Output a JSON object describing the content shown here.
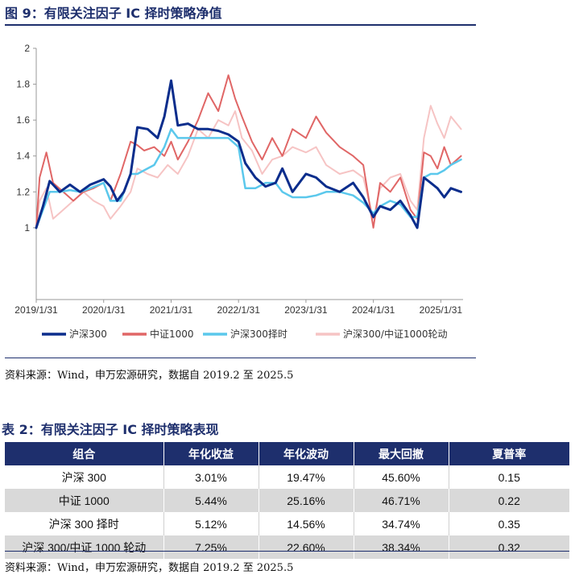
{
  "figure": {
    "title": "图 9：有限关注因子 IC 择时策略净值",
    "source": "资料来源：Wind，申万宏源研究，数据自 2019.2 至 2025.5"
  },
  "chart_data": {
    "type": "line",
    "title": "",
    "xlabel": "",
    "ylabel": "",
    "x_range": [
      "2019/1/31",
      "2025/5/30"
    ],
    "ylim": [
      0.6,
      2.0
    ],
    "y_ticks": [
      {
        "value": 1.0,
        "label": "1"
      },
      {
        "value": 1.2,
        "label": "1.2"
      },
      {
        "value": 1.4,
        "label": "1.4"
      },
      {
        "value": 1.6,
        "label": "1.6"
      },
      {
        "value": 1.8,
        "label": "1.8"
      },
      {
        "value": 2.0,
        "label": "2"
      }
    ],
    "x_ticks": [
      {
        "t": 0.0,
        "label": "2019/1/31"
      },
      {
        "t": 1.0,
        "label": "2020/1/31"
      },
      {
        "t": 2.0,
        "label": "2021/1/31"
      },
      {
        "t": 3.0,
        "label": "2022/1/31"
      },
      {
        "t": 4.0,
        "label": "2023/1/31"
      },
      {
        "t": 5.0,
        "label": "2024/1/31"
      },
      {
        "t": 6.0,
        "label": "2025/1/31"
      }
    ],
    "series": [
      {
        "name": "沪深300",
        "color": "#0b2d8c",
        "width": 3,
        "points": [
          [
            0,
            1.0
          ],
          [
            0.1,
            1.12
          ],
          [
            0.2,
            1.26
          ],
          [
            0.35,
            1.2
          ],
          [
            0.5,
            1.24
          ],
          [
            0.65,
            1.2
          ],
          [
            0.8,
            1.24
          ],
          [
            1.0,
            1.27
          ],
          [
            1.1,
            1.23
          ],
          [
            1.2,
            1.15
          ],
          [
            1.3,
            1.2
          ],
          [
            1.4,
            1.3
          ],
          [
            1.5,
            1.56
          ],
          [
            1.65,
            1.55
          ],
          [
            1.8,
            1.5
          ],
          [
            1.9,
            1.62
          ],
          [
            2.0,
            1.82
          ],
          [
            2.1,
            1.57
          ],
          [
            2.25,
            1.58
          ],
          [
            2.4,
            1.55
          ],
          [
            2.55,
            1.55
          ],
          [
            2.7,
            1.54
          ],
          [
            2.85,
            1.52
          ],
          [
            3.0,
            1.48
          ],
          [
            3.1,
            1.36
          ],
          [
            3.25,
            1.28
          ],
          [
            3.4,
            1.23
          ],
          [
            3.55,
            1.25
          ],
          [
            3.65,
            1.33
          ],
          [
            3.8,
            1.2
          ],
          [
            4.0,
            1.3
          ],
          [
            4.15,
            1.28
          ],
          [
            4.3,
            1.23
          ],
          [
            4.5,
            1.2
          ],
          [
            4.7,
            1.25
          ],
          [
            4.85,
            1.17
          ],
          [
            5.0,
            1.06
          ],
          [
            5.1,
            1.12
          ],
          [
            5.25,
            1.1
          ],
          [
            5.4,
            1.15
          ],
          [
            5.55,
            1.07
          ],
          [
            5.65,
            1.0
          ],
          [
            5.75,
            1.28
          ],
          [
            5.85,
            1.25
          ],
          [
            5.95,
            1.22
          ],
          [
            6.05,
            1.17
          ],
          [
            6.15,
            1.22
          ],
          [
            6.3,
            1.2
          ]
        ]
      },
      {
        "name": "中证1000",
        "color": "#e06666",
        "width": 2,
        "points": [
          [
            0,
            1.0
          ],
          [
            0.05,
            1.28
          ],
          [
            0.15,
            1.42
          ],
          [
            0.25,
            1.25
          ],
          [
            0.4,
            1.2
          ],
          [
            0.55,
            1.15
          ],
          [
            0.7,
            1.2
          ],
          [
            0.85,
            1.22
          ],
          [
            1.0,
            1.25
          ],
          [
            1.1,
            1.15
          ],
          [
            1.25,
            1.3
          ],
          [
            1.4,
            1.48
          ],
          [
            1.5,
            1.46
          ],
          [
            1.6,
            1.43
          ],
          [
            1.75,
            1.45
          ],
          [
            1.9,
            1.4
          ],
          [
            2.0,
            1.48
          ],
          [
            2.1,
            1.38
          ],
          [
            2.25,
            1.48
          ],
          [
            2.4,
            1.6
          ],
          [
            2.55,
            1.75
          ],
          [
            2.7,
            1.65
          ],
          [
            2.85,
            1.85
          ],
          [
            2.95,
            1.72
          ],
          [
            3.05,
            1.62
          ],
          [
            3.2,
            1.48
          ],
          [
            3.35,
            1.38
          ],
          [
            3.5,
            1.5
          ],
          [
            3.65,
            1.4
          ],
          [
            3.8,
            1.55
          ],
          [
            4.0,
            1.5
          ],
          [
            4.15,
            1.62
          ],
          [
            4.3,
            1.53
          ],
          [
            4.5,
            1.45
          ],
          [
            4.7,
            1.4
          ],
          [
            4.85,
            1.35
          ],
          [
            5.0,
            1.0
          ],
          [
            5.1,
            1.25
          ],
          [
            5.25,
            1.2
          ],
          [
            5.4,
            1.28
          ],
          [
            5.55,
            1.1
          ],
          [
            5.65,
            1.05
          ],
          [
            5.75,
            1.42
          ],
          [
            5.85,
            1.4
          ],
          [
            5.95,
            1.33
          ],
          [
            6.05,
            1.45
          ],
          [
            6.15,
            1.35
          ],
          [
            6.3,
            1.4
          ]
        ]
      },
      {
        "name": "沪深300择时",
        "color": "#5bc8ec",
        "width": 2.5,
        "points": [
          [
            0,
            1.0
          ],
          [
            0.1,
            1.1
          ],
          [
            0.2,
            1.2
          ],
          [
            0.35,
            1.2
          ],
          [
            0.5,
            1.21
          ],
          [
            0.65,
            1.2
          ],
          [
            0.8,
            1.22
          ],
          [
            1.0,
            1.25
          ],
          [
            1.1,
            1.15
          ],
          [
            1.25,
            1.15
          ],
          [
            1.4,
            1.3
          ],
          [
            1.5,
            1.3
          ],
          [
            1.6,
            1.32
          ],
          [
            1.75,
            1.35
          ],
          [
            1.9,
            1.45
          ],
          [
            2.0,
            1.55
          ],
          [
            2.1,
            1.5
          ],
          [
            2.25,
            1.5
          ],
          [
            2.4,
            1.5
          ],
          [
            2.55,
            1.5
          ],
          [
            2.7,
            1.5
          ],
          [
            2.85,
            1.5
          ],
          [
            3.0,
            1.45
          ],
          [
            3.1,
            1.22
          ],
          [
            3.25,
            1.22
          ],
          [
            3.4,
            1.25
          ],
          [
            3.55,
            1.25
          ],
          [
            3.65,
            1.2
          ],
          [
            3.8,
            1.17
          ],
          [
            4.0,
            1.17
          ],
          [
            4.15,
            1.18
          ],
          [
            4.3,
            1.2
          ],
          [
            4.5,
            1.2
          ],
          [
            4.7,
            1.18
          ],
          [
            4.85,
            1.14
          ],
          [
            5.0,
            1.08
          ],
          [
            5.1,
            1.12
          ],
          [
            5.25,
            1.15
          ],
          [
            5.4,
            1.13
          ],
          [
            5.55,
            1.06
          ],
          [
            5.65,
            1.06
          ],
          [
            5.75,
            1.28
          ],
          [
            5.85,
            1.3
          ],
          [
            5.95,
            1.3
          ],
          [
            6.05,
            1.32
          ],
          [
            6.15,
            1.35
          ],
          [
            6.3,
            1.38
          ]
        ]
      },
      {
        "name": "沪深300/中证1000轮动",
        "color": "#f6c4c4",
        "width": 2,
        "points": [
          [
            0,
            1.0
          ],
          [
            0.05,
            1.15
          ],
          [
            0.15,
            1.22
          ],
          [
            0.25,
            1.05
          ],
          [
            0.4,
            1.1
          ],
          [
            0.55,
            1.15
          ],
          [
            0.7,
            1.2
          ],
          [
            0.85,
            1.15
          ],
          [
            1.0,
            1.12
          ],
          [
            1.1,
            1.05
          ],
          [
            1.25,
            1.12
          ],
          [
            1.4,
            1.2
          ],
          [
            1.5,
            1.33
          ],
          [
            1.65,
            1.3
          ],
          [
            1.8,
            1.28
          ],
          [
            1.95,
            1.35
          ],
          [
            2.1,
            1.3
          ],
          [
            2.25,
            1.4
          ],
          [
            2.4,
            1.55
          ],
          [
            2.55,
            1.5
          ],
          [
            2.7,
            1.6
          ],
          [
            2.85,
            1.57
          ],
          [
            2.95,
            1.65
          ],
          [
            3.05,
            1.5
          ],
          [
            3.2,
            1.43
          ],
          [
            3.35,
            1.3
          ],
          [
            3.5,
            1.38
          ],
          [
            3.65,
            1.4
          ],
          [
            3.8,
            1.45
          ],
          [
            4.0,
            1.42
          ],
          [
            4.15,
            1.45
          ],
          [
            4.3,
            1.35
          ],
          [
            4.5,
            1.3
          ],
          [
            4.7,
            1.32
          ],
          [
            4.85,
            1.28
          ],
          [
            5.0,
            1.05
          ],
          [
            5.1,
            1.22
          ],
          [
            5.25,
            1.28
          ],
          [
            5.4,
            1.3
          ],
          [
            5.55,
            1.15
          ],
          [
            5.65,
            1.1
          ],
          [
            5.75,
            1.5
          ],
          [
            5.85,
            1.68
          ],
          [
            5.95,
            1.58
          ],
          [
            6.05,
            1.5
          ],
          [
            6.15,
            1.62
          ],
          [
            6.3,
            1.55
          ]
        ]
      }
    ],
    "legend": [
      "沪深300",
      "中证1000",
      "沪深300择时",
      "沪深300/中证1000轮动"
    ],
    "legend_position": "bottom"
  },
  "table": {
    "title": "表 2：有限关注因子 IC 择时策略表现",
    "headers": [
      "组合",
      "年化收益",
      "年化波动",
      "最大回撤",
      "夏普率"
    ],
    "rows": [
      [
        "沪深 300",
        "3.01%",
        "19.47%",
        "45.60%",
        "0.15"
      ],
      [
        "中证 1000",
        "5.44%",
        "25.16%",
        "46.71%",
        "0.22"
      ],
      [
        "沪深 300 择时",
        "5.12%",
        "14.56%",
        "34.74%",
        "0.35"
      ],
      [
        "沪深 300/中证 1000 轮动",
        "7.25%",
        "22.60%",
        "38.34%",
        "0.32"
      ]
    ],
    "source": "资料来源：Wind，申万宏源研究，数据自 2019.2 至 2025.5"
  }
}
